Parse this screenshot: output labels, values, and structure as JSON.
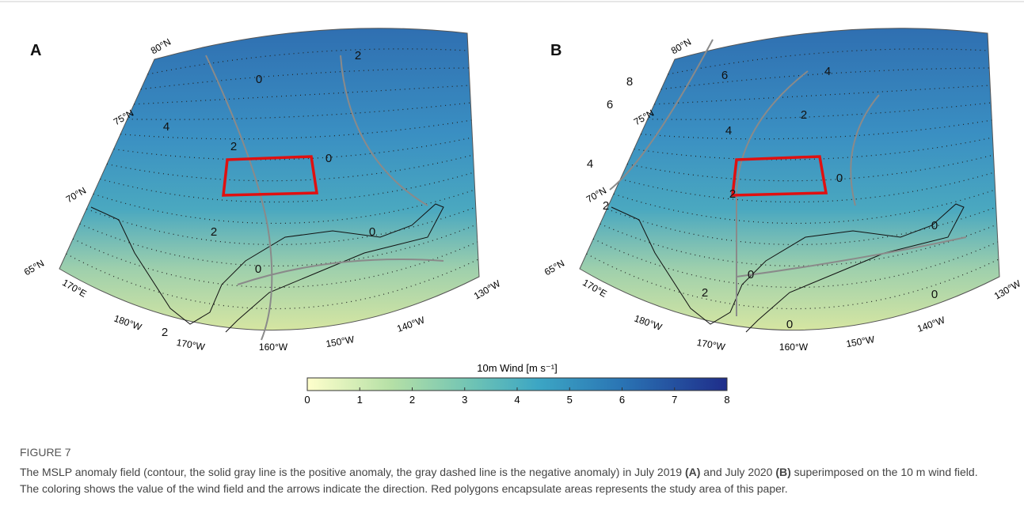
{
  "figure": {
    "panels": [
      {
        "label": "A",
        "latitudes": [
          "80°N",
          "75°N",
          "70°N",
          "65°N"
        ],
        "longitudes": [
          "170°E",
          "180°W",
          "170°W",
          "160°W",
          "150°W",
          "140°W",
          "130°W"
        ],
        "contour_labels": [
          "0",
          "2",
          "4",
          "2",
          "0",
          "2",
          "0",
          "0",
          "2"
        ]
      },
      {
        "label": "B",
        "latitudes": [
          "80°N",
          "75°N",
          "70°N",
          "65°N"
        ],
        "longitudes": [
          "170°E",
          "180°W",
          "170°W",
          "160°W",
          "150°W",
          "140°W",
          "130°W"
        ],
        "contour_labels": [
          "8",
          "6",
          "4",
          "6",
          "2",
          "4",
          "4",
          "0",
          "2",
          "2",
          "0",
          "0",
          "2",
          "0",
          "0"
        ]
      }
    ],
    "colorbar": {
      "title": "10m Wind [m s⁻¹]",
      "range": [
        0,
        8
      ],
      "ticks": [
        0,
        1,
        2,
        3,
        4,
        5,
        6,
        7,
        8
      ]
    }
  },
  "caption": {
    "heading": "FIGURE 7",
    "segments": [
      {
        "text": "The MSLP anomaly field (contour, the solid gray line is the positive anomaly, the gray dashed line is the negative anomaly) in July 2019 "
      },
      {
        "text": "(A)",
        "bold": true
      },
      {
        "text": " and July 2020 "
      },
      {
        "text": "(B)",
        "bold": true
      },
      {
        "text": " superimposed on the 10 m wind field. The coloring shows the value of the wind field and the arrows indicate the direction. Red polygons encapsulate areas represents the study area of this paper."
      }
    ]
  }
}
